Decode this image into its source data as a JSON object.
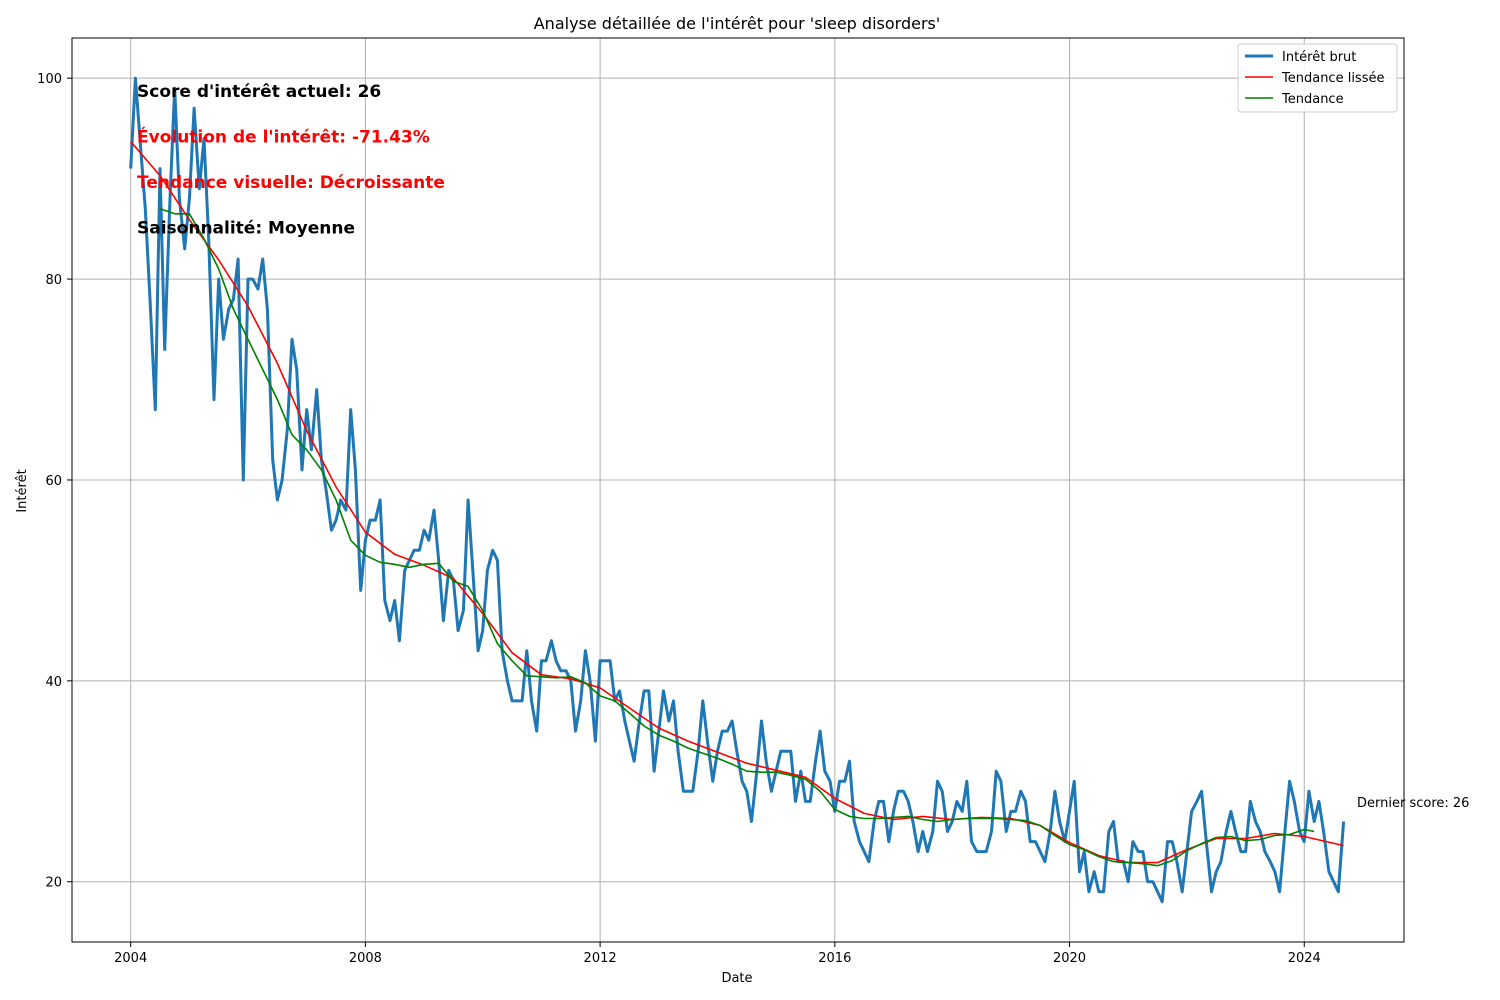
{
  "chart_data": {
    "type": "line",
    "title": "Analyse détaillée de l'intérêt pour 'sleep disorders'",
    "xlabel": "Date",
    "ylabel": "Intérêt",
    "xlim": [
      2003.0,
      2025.7
    ],
    "ylim": [
      14,
      104
    ],
    "x_ticks": [
      2004,
      2008,
      2012,
      2016,
      2020,
      2024
    ],
    "y_ticks": [
      20,
      40,
      60,
      80,
      100
    ],
    "grid": true,
    "legend_position": "top-right",
    "annotations": [
      {
        "text": "Score d'intérêt actuel: 26",
        "color": "#000000"
      },
      {
        "text": "Évolution de l'intérêt: -71.43%",
        "color": "#ff0000"
      },
      {
        "text": "Tendance visuelle: Décroissante",
        "color": "#ff0000"
      },
      {
        "text": "Saisonnalité: Moyenne",
        "color": "#000000"
      }
    ],
    "last_label": "Dernier score: 26",
    "series": [
      {
        "name": "Intérêt brut",
        "color": "#1f77b4",
        "x": [
          2004.0,
          2004.08,
          2004.17,
          2004.25,
          2004.33,
          2004.42,
          2004.5,
          2004.58,
          2004.67,
          2004.75,
          2004.83,
          2004.92,
          2005.0,
          2005.08,
          2005.17,
          2005.25,
          2005.33,
          2005.42,
          2005.5,
          2005.58,
          2005.67,
          2005.75,
          2005.83,
          2005.92,
          2006.0,
          2006.08,
          2006.17,
          2006.25,
          2006.33,
          2006.42,
          2006.5,
          2006.58,
          2006.67,
          2006.75,
          2006.83,
          2006.92,
          2007.0,
          2007.08,
          2007.17,
          2007.25,
          2007.33,
          2007.42,
          2007.5,
          2007.58,
          2007.67,
          2007.75,
          2007.83,
          2007.92,
          2008.0,
          2008.08,
          2008.17,
          2008.25,
          2008.33,
          2008.42,
          2008.5,
          2008.58,
          2008.67,
          2008.75,
          2008.83,
          2008.92,
          2009.0,
          2009.08,
          2009.17,
          2009.25,
          2009.33,
          2009.42,
          2009.5,
          2009.58,
          2009.67,
          2009.75,
          2009.83,
          2009.92,
          2010.0,
          2010.08,
          2010.17,
          2010.25,
          2010.33,
          2010.42,
          2010.5,
          2010.58,
          2010.67,
          2010.75,
          2010.83,
          2010.92,
          2011.0,
          2011.08,
          2011.17,
          2011.25,
          2011.33,
          2011.42,
          2011.5,
          2011.58,
          2011.67,
          2011.75,
          2011.83,
          2011.92,
          2012.0,
          2012.08,
          2012.17,
          2012.25,
          2012.33,
          2012.42,
          2012.5,
          2012.58,
          2012.67,
          2012.75,
          2012.83,
          2012.92,
          2013.0,
          2013.08,
          2013.17,
          2013.25,
          2013.33,
          2013.42,
          2013.5,
          2013.58,
          2013.67,
          2013.75,
          2013.83,
          2013.92,
          2014.0,
          2014.08,
          2014.17,
          2014.25,
          2014.33,
          2014.42,
          2014.5,
          2014.58,
          2014.67,
          2014.75,
          2014.83,
          2014.92,
          2015.0,
          2015.08,
          2015.17,
          2015.25,
          2015.33,
          2015.42,
          2015.5,
          2015.58,
          2015.67,
          2015.75,
          2015.83,
          2015.92,
          2016.0,
          2016.08,
          2016.17,
          2016.25,
          2016.33,
          2016.42,
          2016.5,
          2016.58,
          2016.67,
          2016.75,
          2016.83,
          2016.92,
          2017.0,
          2017.08,
          2017.17,
          2017.25,
          2017.33,
          2017.42,
          2017.5,
          2017.58,
          2017.67,
          2017.75,
          2017.83,
          2017.92,
          2018.0,
          2018.08,
          2018.17,
          2018.25,
          2018.33,
          2018.42,
          2018.5,
          2018.58,
          2018.67,
          2018.75,
          2018.83,
          2018.92,
          2019.0,
          2019.08,
          2019.17,
          2019.25,
          2019.33,
          2019.42,
          2019.5,
          2019.58,
          2019.67,
          2019.75,
          2019.83,
          2019.92,
          2020.0,
          2020.08,
          2020.17,
          2020.25,
          2020.33,
          2020.42,
          2020.5,
          2020.58,
          2020.67,
          2020.75,
          2020.83,
          2020.92,
          2021.0,
          2021.08,
          2021.17,
          2021.25,
          2021.33,
          2021.42,
          2021.5,
          2021.58,
          2021.67,
          2021.75,
          2021.83,
          2021.92,
          2022.0,
          2022.08,
          2022.17,
          2022.25,
          2022.33,
          2022.42,
          2022.5,
          2022.58,
          2022.67,
          2022.75,
          2022.83,
          2022.92,
          2023.0,
          2023.08,
          2023.17,
          2023.25,
          2023.33,
          2023.42,
          2023.5,
          2023.58,
          2023.67,
          2023.75,
          2023.83,
          2023.92,
          2024.0,
          2024.08,
          2024.17,
          2024.25,
          2024.33,
          2024.42,
          2024.5,
          2024.58,
          2024.67
        ],
        "y": [
          91,
          100,
          93,
          87,
          78,
          67,
          91,
          73,
          88,
          99,
          88,
          83,
          88,
          97,
          89,
          94,
          84,
          68,
          80,
          74,
          77,
          78,
          82,
          60,
          80,
          80,
          79,
          82,
          77,
          62,
          58,
          60,
          65,
          74,
          71,
          61,
          67,
          63,
          69,
          62,
          59,
          55,
          56,
          58,
          57,
          67,
          61,
          49,
          54,
          56,
          56,
          58,
          48,
          46,
          48,
          44,
          51,
          52,
          53,
          53,
          55,
          54,
          57,
          52,
          46,
          51,
          50,
          45,
          47,
          58,
          51,
          43,
          45,
          51,
          53,
          52,
          43,
          40,
          38,
          38,
          38,
          43,
          38,
          35,
          42,
          42,
          44,
          42,
          41,
          41,
          40,
          35,
          38,
          43,
          40,
          34,
          42,
          42,
          42,
          38,
          39,
          36,
          34,
          32,
          36,
          39,
          39,
          31,
          35,
          39,
          36,
          38,
          33,
          29,
          29,
          29,
          33,
          38,
          34,
          30,
          33,
          35,
          35,
          36,
          33,
          30,
          29,
          26,
          31,
          36,
          32,
          29,
          31,
          33,
          33,
          33,
          28,
          31,
          28,
          28,
          32,
          35,
          31,
          30,
          27,
          30,
          30,
          32,
          26,
          24,
          23,
          22,
          26,
          28,
          28,
          24,
          27,
          29,
          29,
          28,
          26,
          23,
          25,
          23,
          25,
          30,
          29,
          25,
          26,
          28,
          27,
          30,
          24,
          23,
          23,
          23,
          25,
          31,
          30,
          25,
          27,
          27,
          29,
          28,
          24,
          24,
          23,
          22,
          25,
          29,
          26,
          24,
          27,
          30,
          21,
          23,
          19,
          21,
          19,
          19,
          25,
          26,
          22,
          22,
          20,
          24,
          23,
          23,
          20,
          20,
          19,
          18,
          24,
          24,
          22,
          19,
          23,
          27,
          28,
          29,
          24,
          19,
          21,
          22,
          25,
          27,
          25,
          23,
          23,
          28,
          26,
          25,
          23,
          22,
          21,
          19,
          25,
          30,
          28,
          25,
          24,
          29,
          26,
          28,
          25,
          21,
          20,
          19,
          26
        ]
      },
      {
        "name": "Tendance lissée",
        "color": "#ff0000",
        "x": [
          2004.0,
          2004.5,
          2005.0,
          2005.5,
          2006.0,
          2006.5,
          2007.0,
          2007.5,
          2008.0,
          2008.5,
          2009.0,
          2009.5,
          2010.0,
          2010.5,
          2011.0,
          2011.5,
          2012.0,
          2012.5,
          2013.0,
          2013.5,
          2014.0,
          2014.5,
          2015.0,
          2015.5,
          2016.0,
          2016.5,
          2017.0,
          2017.5,
          2018.0,
          2018.5,
          2019.0,
          2019.5,
          2020.0,
          2020.5,
          2021.0,
          2021.5,
          2022.0,
          2022.5,
          2023.0,
          2023.5,
          2024.0,
          2024.67
        ],
        "y": [
          93.7,
          90.3,
          85.9,
          81.9,
          77.3,
          71.6,
          64.9,
          59.3,
          54.8,
          52.6,
          51.5,
          50.2,
          46.7,
          42.8,
          40.6,
          40.2,
          39.3,
          37.3,
          35.3,
          34.0,
          32.9,
          31.8,
          31.1,
          30.4,
          28.3,
          26.8,
          26.2,
          26.5,
          26.2,
          26.4,
          26.3,
          25.6,
          23.9,
          22.6,
          21.9,
          21.9,
          23.2,
          24.3,
          24.3,
          24.8,
          24.5,
          23.6
        ]
      },
      {
        "name": "Tendance",
        "color": "#008000",
        "x": [
          2004.5,
          2004.75,
          2005.0,
          2005.25,
          2005.5,
          2005.75,
          2006.0,
          2006.25,
          2006.5,
          2006.75,
          2007.0,
          2007.25,
          2007.5,
          2007.75,
          2008.0,
          2008.25,
          2008.5,
          2008.75,
          2009.0,
          2009.25,
          2009.5,
          2009.75,
          2010.0,
          2010.25,
          2010.5,
          2010.75,
          2011.0,
          2011.25,
          2011.5,
          2011.75,
          2012.0,
          2012.25,
          2012.5,
          2012.75,
          2013.0,
          2013.25,
          2013.5,
          2013.75,
          2014.0,
          2014.25,
          2014.5,
          2014.75,
          2015.0,
          2015.25,
          2015.5,
          2015.75,
          2016.0,
          2016.25,
          2016.5,
          2016.75,
          2017.0,
          2017.25,
          2017.5,
          2017.75,
          2018.0,
          2018.25,
          2018.5,
          2018.75,
          2019.0,
          2019.25,
          2019.5,
          2019.75,
          2020.0,
          2020.25,
          2020.5,
          2020.75,
          2021.0,
          2021.25,
          2021.5,
          2021.75,
          2022.0,
          2022.25,
          2022.5,
          2022.75,
          2023.0,
          2023.25,
          2023.5,
          2023.75,
          2024.0,
          2024.17
        ],
        "y": [
          87.0,
          86.5,
          86.5,
          84.0,
          81.0,
          77.0,
          74.0,
          71.0,
          68.0,
          64.5,
          63.0,
          61.0,
          58.0,
          54.0,
          52.5,
          51.8,
          51.6,
          51.3,
          51.6,
          51.7,
          49.9,
          49.4,
          47.0,
          43.7,
          42.0,
          40.5,
          40.4,
          40.3,
          40.4,
          39.8,
          38.5,
          38.0,
          36.8,
          35.5,
          34.6,
          34.0,
          33.3,
          32.8,
          32.3,
          31.7,
          31.0,
          30.9,
          30.9,
          30.6,
          30.2,
          29.0,
          27.2,
          26.5,
          26.3,
          26.3,
          26.4,
          26.5,
          26.2,
          26.0,
          26.2,
          26.3,
          26.3,
          26.3,
          26.2,
          26.1,
          25.6,
          24.6,
          23.7,
          23.2,
          22.5,
          22.0,
          21.9,
          21.8,
          21.6,
          22.1,
          23.1,
          23.8,
          24.4,
          24.5,
          24.1,
          24.2,
          24.6,
          24.7,
          25.2,
          25.0
        ]
      }
    ]
  }
}
